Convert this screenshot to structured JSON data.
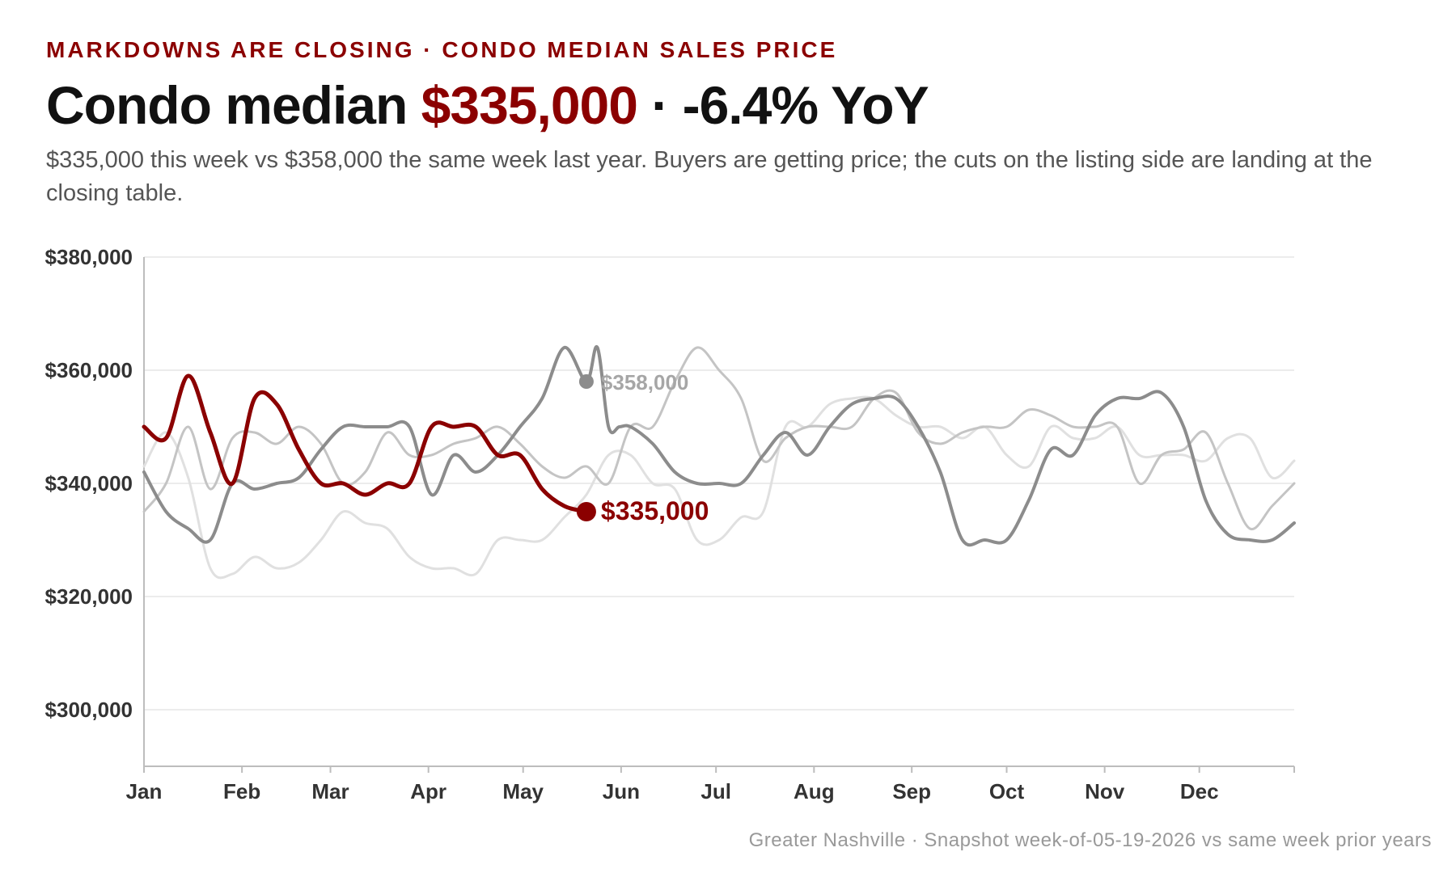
{
  "header": {
    "kicker": "MARKDOWNS ARE CLOSING · CONDO MEDIAN SALES PRICE",
    "headline_prefix": "Condo median ",
    "headline_value": "$335,000",
    "headline_suffix": " · -6.4% YoY",
    "subtitle": "$335,000 this week vs $358,000 the same week last year. Buyers are getting price; the cuts on the listing side are landing at the closing table."
  },
  "footer": {
    "source": "Greater Nashville · Snapshot week-of-05-19-2026 vs same week prior years"
  },
  "colors": {
    "accent": "#8b0000",
    "prior_year": "#8c8c8c",
    "older_year_1": "#c4c4c4",
    "older_year_2": "#e0e0e0",
    "grid": "#ececec",
    "axis": "#bdbdbd"
  },
  "chart_data": {
    "type": "line",
    "ylim": [
      290000,
      380000
    ],
    "yticks": [
      300000,
      320000,
      340000,
      360000,
      380000
    ],
    "ytick_labels": [
      "$300,000",
      "$320,000",
      "$340,000",
      "$360,000",
      "$380,000"
    ],
    "xlim": [
      0,
      52
    ],
    "month_labels": [
      "Jan",
      "Feb",
      "Mar",
      "Apr",
      "May",
      "Jun",
      "Jul",
      "Aug",
      "Sep",
      "Oct",
      "Nov",
      "Dec"
    ],
    "month_positions": [
      0,
      4.43,
      8.43,
      12.86,
      17.14,
      21.57,
      25.86,
      30.29,
      34.71,
      39,
      43.43,
      47.71
    ],
    "grid": true,
    "series": [
      {
        "role": "older-2",
        "x": [
          0,
          1,
          2,
          3,
          4,
          5,
          6,
          7,
          8,
          9,
          10,
          11,
          12,
          13,
          14,
          15,
          16,
          17,
          18,
          19,
          20,
          21,
          22,
          23,
          24,
          25,
          26,
          27,
          28,
          29,
          30,
          31,
          32,
          33,
          34,
          35,
          36,
          37,
          38,
          39,
          40,
          41,
          42,
          43,
          44,
          45,
          46,
          47,
          48,
          49,
          50,
          51,
          52
        ],
        "values": [
          343000,
          349000,
          341000,
          325000,
          324000,
          327000,
          325000,
          326000,
          330000,
          335000,
          333000,
          332000,
          327000,
          325000,
          325000,
          324000,
          330000,
          330000,
          330000,
          334000,
          338000,
          345000,
          345000,
          340000,
          339000,
          330000,
          330000,
          334000,
          335000,
          350000,
          350000,
          354000,
          355000,
          355000,
          352000,
          350000,
          350000,
          348000,
          350000,
          345000,
          343000,
          350000,
          348000,
          348000,
          350000,
          345000,
          345000,
          345000,
          344000,
          348000,
          348000,
          341000,
          344000
        ]
      },
      {
        "role": "older-1",
        "x": [
          0,
          1,
          2,
          3,
          4,
          5,
          6,
          7,
          8,
          9,
          10,
          11,
          12,
          13,
          14,
          15,
          16,
          17,
          18,
          19,
          20,
          21,
          22,
          23,
          24,
          25,
          26,
          27,
          28,
          29,
          30,
          31,
          32,
          33,
          34,
          35,
          36,
          37,
          38,
          39,
          40,
          41,
          42,
          43,
          44,
          45,
          46,
          47,
          48,
          49,
          50,
          51,
          52
        ],
        "values": [
          335000,
          340000,
          350000,
          339000,
          348000,
          349000,
          347000,
          350000,
          347000,
          340000,
          342000,
          349000,
          345000,
          345000,
          347000,
          348000,
          350000,
          347000,
          343000,
          341000,
          343000,
          340000,
          350000,
          350000,
          358000,
          364000,
          360000,
          355000,
          344000,
          348000,
          350000,
          350000,
          350000,
          355000,
          356000,
          349000,
          347000,
          349000,
          350000,
          350000,
          353000,
          352000,
          350000,
          350000,
          350000,
          340000,
          345000,
          346000,
          349000,
          340000,
          332000,
          336000,
          340000
        ]
      },
      {
        "role": "prior-year",
        "x": [
          0,
          1,
          2,
          3,
          4,
          5,
          6,
          7,
          8,
          9,
          10,
          11,
          12,
          13,
          14,
          15,
          16,
          17,
          18,
          19,
          20,
          20.5,
          21,
          21.5,
          22,
          23,
          24,
          25,
          26,
          27,
          28,
          29,
          30,
          31,
          32,
          33,
          34,
          35,
          36,
          37,
          38,
          39,
          40,
          41,
          42,
          43,
          44,
          45,
          46,
          47,
          48,
          49,
          50,
          51,
          52
        ],
        "values": [
          342000,
          335000,
          332000,
          330000,
          340000,
          339000,
          340000,
          341000,
          346000,
          350000,
          350000,
          350000,
          350000,
          338000,
          345000,
          342000,
          345000,
          350000,
          355000,
          364000,
          358000,
          364000,
          350000,
          350000,
          350000,
          347000,
          342000,
          340000,
          340000,
          340000,
          345000,
          349000,
          345000,
          350000,
          354000,
          355000,
          355000,
          350000,
          342000,
          330000,
          330000,
          330000,
          337000,
          346000,
          345000,
          352000,
          355000,
          355000,
          356000,
          350000,
          337000,
          331000,
          330000,
          330000,
          333000
        ]
      },
      {
        "role": "current-year",
        "x": [
          0,
          1,
          2,
          3,
          4,
          5,
          6,
          7,
          8,
          9,
          10,
          11,
          12,
          13,
          14,
          15,
          16,
          17,
          18,
          19,
          20
        ],
        "values": [
          350000,
          348000,
          359000,
          349000,
          340000,
          355000,
          354000,
          346000,
          340000,
          340000,
          338000,
          340000,
          340000,
          350000,
          350000,
          350000,
          345000,
          345000,
          339000,
          336000,
          335000
        ]
      }
    ],
    "annotations": [
      {
        "series": "prior-year",
        "x": 20,
        "y": 358000,
        "label": "$358,000"
      },
      {
        "series": "current-year",
        "x": 20,
        "y": 335000,
        "label": "$335,000"
      }
    ]
  }
}
